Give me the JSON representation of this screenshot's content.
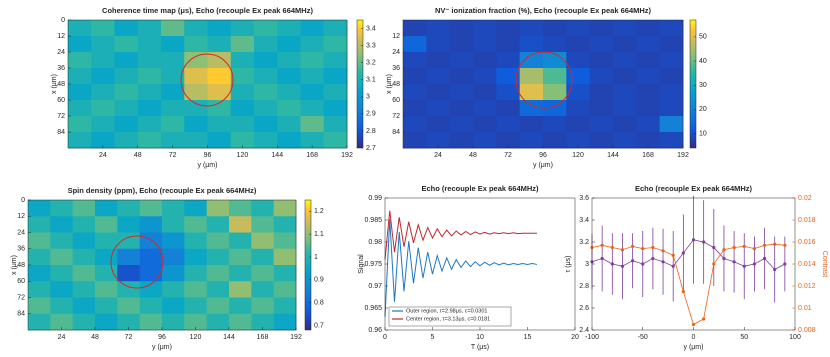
{
  "chart_data": [
    {
      "type": "heatmap",
      "title": "Coherence time map (μs), Echo (recouple Ex peak 664MHz)",
      "xlabel": "y (μm)",
      "ylabel": "x (μm)",
      "x": [
        8,
        24,
        40,
        56,
        72,
        88,
        104,
        120,
        136,
        152,
        168,
        184
      ],
      "y": [
        6,
        18,
        30,
        42,
        54,
        66,
        78,
        90
      ],
      "z": [
        [
          3.1,
          3.15,
          3.05,
          3.1,
          3.2,
          3.1,
          3.05,
          3.1,
          3.15,
          3.1,
          3.05,
          3.1
        ],
        [
          3.05,
          3.1,
          3.15,
          3.1,
          3.05,
          3.15,
          3.1,
          3.2,
          3.1,
          3.05,
          3.1,
          3.15
        ],
        [
          3.15,
          3.1,
          3.05,
          3.1,
          3.1,
          3.25,
          3.3,
          3.1,
          3.05,
          3.1,
          3.15,
          3.1
        ],
        [
          3.1,
          3.05,
          3.1,
          3.15,
          3.1,
          3.35,
          3.4,
          3.15,
          3.1,
          3.05,
          3.1,
          3.05
        ],
        [
          3.05,
          3.1,
          3.15,
          3.1,
          3.05,
          3.3,
          3.35,
          3.1,
          3.15,
          3.1,
          3.05,
          3.1
        ],
        [
          3.1,
          3.15,
          3.1,
          3.05,
          3.1,
          3.1,
          3.15,
          3.05,
          3.1,
          3.15,
          3.1,
          3.05
        ],
        [
          3.15,
          3.1,
          3.05,
          3.1,
          3.15,
          3.05,
          3.1,
          3.1,
          3.05,
          3.1,
          3.2,
          3.1
        ],
        [
          3.1,
          3.05,
          3.1,
          3.15,
          3.1,
          3.1,
          3.05,
          3.15,
          3.1,
          3.05,
          3.1,
          3.15
        ]
      ],
      "xlim": [
        0,
        192
      ],
      "xticks": [
        24,
        48,
        72,
        96,
        120,
        144,
        168,
        192
      ],
      "ylim": [
        0,
        96
      ],
      "yticks": [
        0,
        12,
        24,
        36,
        48,
        60,
        72,
        84
      ],
      "y_reversed": true,
      "clim": [
        2.7,
        3.45
      ],
      "cticks": [
        2.7,
        2.8,
        2.9,
        3,
        3.1,
        3.2,
        3.3,
        3.4
      ]
    },
    {
      "type": "heatmap",
      "title": "NV⁻ ionization fraction (%), Echo (recouple Ex peak 664MHz)",
      "xlabel": "y (μm)",
      "ylabel": "x (μm)",
      "x": [
        8,
        24,
        40,
        56,
        72,
        88,
        104,
        120,
        136,
        152,
        168,
        184
      ],
      "y": [
        6,
        18,
        30,
        42,
        54,
        66,
        78,
        90
      ],
      "z": [
        [
          8,
          9,
          8,
          9,
          8,
          9,
          8,
          9,
          8,
          9,
          8,
          9
        ],
        [
          14,
          9,
          8,
          9,
          8,
          10,
          9,
          8,
          9,
          8,
          9,
          8
        ],
        [
          9,
          8,
          9,
          8,
          9,
          20,
          22,
          9,
          8,
          9,
          8,
          9
        ],
        [
          8,
          9,
          8,
          9,
          12,
          45,
          38,
          12,
          9,
          8,
          9,
          8
        ],
        [
          9,
          8,
          9,
          8,
          10,
          50,
          42,
          10,
          8,
          9,
          8,
          9
        ],
        [
          8,
          9,
          8,
          9,
          8,
          15,
          14,
          9,
          8,
          9,
          8,
          9
        ],
        [
          9,
          8,
          9,
          8,
          9,
          8,
          9,
          8,
          9,
          8,
          9,
          20
        ],
        [
          8,
          9,
          8,
          9,
          8,
          9,
          8,
          9,
          8,
          9,
          8,
          9
        ]
      ],
      "xlim": [
        0,
        192
      ],
      "xticks": [
        24,
        48,
        72,
        96,
        120,
        144,
        168,
        192
      ],
      "ylim": [
        0,
        96
      ],
      "yticks": [
        12,
        24,
        36,
        48,
        60,
        72,
        84
      ],
      "y_reversed": true,
      "clim": [
        4,
        57
      ],
      "cticks": [
        10,
        20,
        30,
        40,
        50
      ]
    },
    {
      "type": "heatmap",
      "title": "Spin density (ppm), Echo (recouple Ex peak 664MHz)",
      "xlabel": "y (μm)",
      "ylabel": "x (μm)",
      "x": [
        8,
        24,
        40,
        56,
        72,
        88,
        104,
        120,
        136,
        152,
        168,
        184
      ],
      "y": [
        6,
        18,
        30,
        42,
        54,
        66,
        78,
        90
      ],
      "z": [
        [
          0.95,
          1.0,
          1.05,
          0.95,
          1.0,
          1.05,
          1.0,
          0.95,
          1.1,
          1.05,
          1.0,
          1.1
        ],
        [
          1.0,
          0.95,
          1.0,
          1.05,
          0.95,
          0.9,
          1.0,
          1.05,
          1.0,
          1.15,
          1.05,
          1.0
        ],
        [
          1.05,
          1.0,
          0.95,
          1.0,
          1.0,
          0.85,
          0.9,
          1.0,
          1.05,
          1.0,
          1.1,
          1.05
        ],
        [
          1.0,
          1.05,
          1.0,
          0.95,
          0.85,
          0.8,
          0.85,
          0.95,
          1.0,
          1.05,
          1.0,
          1.1
        ],
        [
          0.95,
          1.0,
          1.05,
          1.0,
          0.75,
          0.8,
          0.9,
          1.0,
          1.05,
          1.0,
          1.05,
          1.0
        ],
        [
          1.0,
          0.95,
          1.0,
          1.05,
          1.0,
          0.95,
          1.0,
          1.05,
          1.0,
          1.1,
          1.0,
          1.05
        ],
        [
          1.05,
          1.0,
          0.95,
          1.0,
          1.05,
          1.0,
          0.95,
          1.0,
          1.05,
          1.0,
          1.05,
          1.0
        ],
        [
          1.0,
          1.05,
          1.0,
          0.95,
          1.0,
          1.05,
          1.0,
          1.05,
          1.0,
          1.05,
          1.0,
          0.95
        ]
      ],
      "xlim": [
        0,
        192
      ],
      "xticks": [
        24,
        48,
        72,
        96,
        120,
        144,
        168,
        192
      ],
      "ylim": [
        0,
        96
      ],
      "yticks": [
        0,
        12,
        24,
        36,
        48,
        60,
        72,
        84
      ],
      "y_reversed": true,
      "clim": [
        0.68,
        1.25
      ],
      "cticks": [
        0.7,
        0.8,
        0.9,
        1,
        1.1,
        1.2
      ]
    },
    {
      "type": "line",
      "title": "Echo (recouple Ex peak 664MHz)",
      "xlabel": "T (μs)",
      "ylabel": "Signal",
      "x": [
        0,
        0.5,
        1,
        1.5,
        2,
        2.5,
        3,
        3.5,
        4,
        4.5,
        5,
        5.5,
        6,
        6.5,
        7,
        7.5,
        8,
        8.5,
        9,
        9.5,
        10,
        10.5,
        11,
        11.5,
        12,
        12.5,
        13,
        13.5,
        14,
        14.5,
        15,
        15.5,
        16
      ],
      "series": [
        {
          "name": "Outer region, τ=2.98μs, c=0.0301",
          "color": "#1f77c4",
          "values": [
            0.963,
            0.9852,
            0.9664,
            0.9823,
            0.9688,
            0.9802,
            0.9706,
            0.9787,
            0.9718,
            0.9777,
            0.9727,
            0.9769,
            0.9734,
            0.9764,
            0.9738,
            0.976,
            0.9742,
            0.9757,
            0.9744,
            0.9755,
            0.9746,
            0.9754,
            0.9747,
            0.9753,
            0.9748,
            0.9752,
            0.9748,
            0.9751,
            0.9749,
            0.9751,
            0.9749,
            0.9751,
            0.9749
          ]
        },
        {
          "name": "Center region, τ=3.13μs, c=0.0181",
          "color": "#c0282e",
          "values": [
            0.976,
            0.9871,
            0.9777,
            0.9856,
            0.9789,
            0.9846,
            0.9798,
            0.9839,
            0.9804,
            0.9833,
            0.9809,
            0.983,
            0.9812,
            0.9827,
            0.9814,
            0.9825,
            0.9816,
            0.9824,
            0.9817,
            0.9823,
            0.9818,
            0.9822,
            0.9818,
            0.9821,
            0.9819,
            0.9821,
            0.9819,
            0.9821,
            0.9819,
            0.982,
            0.982,
            0.982,
            0.982
          ]
        }
      ],
      "xlim": [
        0,
        20
      ],
      "xticks": [
        0,
        5,
        10,
        15,
        20
      ],
      "ylim": [
        0.96,
        0.99
      ],
      "yticks": [
        0.96,
        0.965,
        0.97,
        0.975,
        0.98,
        0.985,
        0.99
      ],
      "legend": "lower left"
    },
    {
      "type": "line",
      "title": "Echo (recouple Ex peak 664MHz)",
      "xlabel": "y (μm)",
      "ylabel": "τ (μs)",
      "y2label": "Contrast",
      "x": [
        -100,
        -90,
        -80,
        -70,
        -60,
        -50,
        -40,
        -30,
        -20,
        -10,
        0,
        10,
        20,
        30,
        40,
        50,
        60,
        70,
        80,
        90
      ],
      "series": [
        {
          "color": "#7e3f9e",
          "values": [
            3.02,
            3.05,
            3.0,
            2.98,
            3.03,
            3.0,
            3.05,
            3.02,
            2.98,
            3.1,
            3.22,
            3.2,
            3.15,
            3.05,
            3.02,
            2.98,
            3.0,
            3.05,
            2.95,
            3.0
          ],
          "errors": [
            0.25,
            0.3,
            0.28,
            0.3,
            0.25,
            0.3,
            0.28,
            0.3,
            0.32,
            0.35,
            0.4,
            0.38,
            0.35,
            0.3,
            0.28,
            0.3,
            0.25,
            0.28,
            0.3,
            0.25
          ]
        },
        {
          "color": "#e8641c",
          "axis": "y2",
          "values": [
            0.0155,
            0.0157,
            0.0155,
            0.0153,
            0.0156,
            0.0154,
            0.0155,
            0.0152,
            0.0148,
            0.0115,
            0.0085,
            0.009,
            0.014,
            0.0153,
            0.0155,
            0.0156,
            0.0154,
            0.0157,
            0.0158,
            0.0157
          ]
        }
      ],
      "xlim": [
        -100,
        100
      ],
      "xticks": [
        -100,
        -50,
        0,
        50,
        100
      ],
      "ylim": [
        2.4,
        3.6
      ],
      "yticks": [
        2.4,
        2.6,
        2.8,
        3,
        3.2,
        3.4,
        3.6
      ],
      "y2lim": [
        0.008,
        0.02
      ],
      "y2ticks": [
        0.008,
        0.01,
        0.012,
        0.014,
        0.016,
        0.018,
        0.02
      ]
    }
  ]
}
